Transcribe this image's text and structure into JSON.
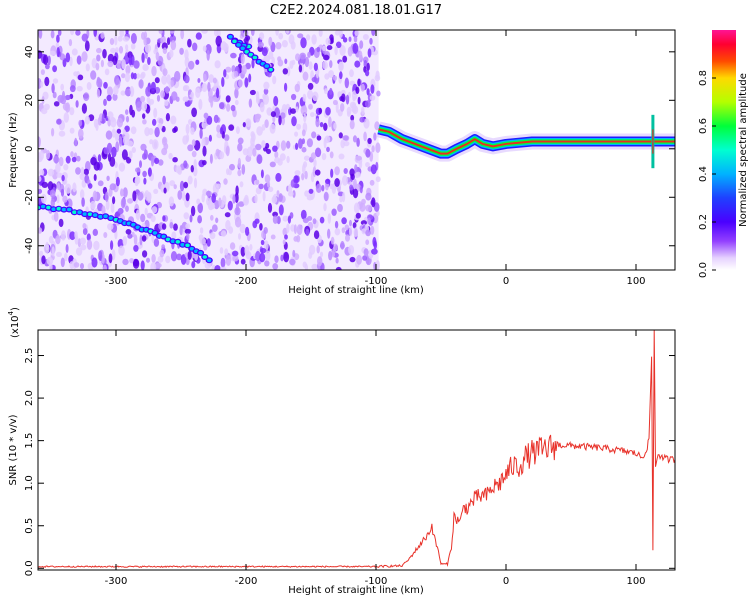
{
  "title": "C2E2.2024.081.18.01.G17",
  "chart_data": [
    {
      "type": "heatmap",
      "xlabel": "Height of straight line (km)",
      "ylabel": "Frequency (Hz)",
      "xlim": [
        -360,
        130
      ],
      "ylim": [
        -50,
        49
      ],
      "xticks": [
        "-300",
        "-200",
        "-100",
        "0",
        "100"
      ],
      "yticks": [
        "-40",
        "-20",
        "0",
        "20",
        "40"
      ],
      "colorbar": {
        "label": "Normalized spectral amplitude",
        "range": [
          0,
          1
        ],
        "ticks": [
          "0.0",
          "0.2",
          "0.4",
          "0.6",
          "0.8"
        ],
        "colors": [
          "#ffffff",
          "#e6d2ff",
          "#c38cff",
          "#9340ff",
          "#6a00f0",
          "#1f1bff",
          "#00b2ff",
          "#00ffd0",
          "#00ff3a",
          "#b4ff00",
          "#ffd900",
          "#ff4a00",
          "#ff0030",
          "#ff1493"
        ]
      },
      "noise_region": {
        "x_range": [
          -360,
          -98
        ],
        "y_range": [
          -50,
          49
        ]
      },
      "traces": [
        {
          "name": "",
          "points": [
            [
              -360,
              -24
            ],
            [
              -340,
              -25
            ],
            [
              -320,
              -27
            ],
            [
              -300,
              -29
            ],
            [
              -280,
              -33
            ],
            [
              -260,
              -37
            ],
            [
              -245,
              -40
            ],
            [
              -235,
              -43
            ],
            [
              -225,
              -47
            ]
          ]
        },
        {
          "name": "",
          "points": [
            [
              -198,
              42
            ],
            [
              -205,
              44
            ],
            [
              -212,
              46
            ],
            [
              -190,
              36
            ],
            [
              -178,
              32
            ]
          ]
        },
        {
          "name": "",
          "points": [
            [
              -98,
              8
            ],
            [
              -90,
              7
            ],
            [
              -80,
              4
            ],
            [
              -70,
              2
            ],
            [
              -60,
              0
            ],
            [
              -50,
              -2
            ],
            [
              -45,
              -2
            ],
            [
              -38,
              0
            ],
            [
              -30,
              2
            ],
            [
              -24,
              4
            ],
            [
              -18,
              2
            ],
            [
              -10,
              1
            ],
            [
              0,
              2
            ],
            [
              20,
              3
            ],
            [
              40,
              3
            ],
            [
              60,
              3
            ],
            [
              80,
              3
            ],
            [
              100,
              3
            ],
            [
              110,
              3
            ],
            [
              115,
              3
            ],
            [
              130,
              3
            ]
          ]
        }
      ]
    },
    {
      "type": "line",
      "xlabel": "Height of straight line (km)",
      "ylabel": "SNR (10 * v/v)",
      "y_multiplier": "(x10",
      "y_multiplier_exp": "4",
      "y_multiplier_close": ")",
      "xlim": [
        -360,
        130
      ],
      "ylim": [
        -0.02,
        2.8
      ],
      "xticks": [
        "-300",
        "-200",
        "-100",
        "0",
        "100"
      ],
      "yticks": [
        "0.0",
        "0.5",
        "1.0",
        "1.5",
        "2.0",
        "2.5"
      ],
      "color": "#e8322a",
      "series": [
        {
          "name": "",
          "x": [
            -360,
            -200,
            -100,
            -80,
            -75,
            -70,
            -65,
            -60,
            -57,
            -55,
            -52,
            -50,
            -45,
            -42,
            -40,
            -35,
            -32,
            -30,
            -25,
            -20,
            -15,
            -10,
            -5,
            0,
            5,
            10,
            15,
            20,
            30,
            40,
            50,
            60,
            70,
            80,
            90,
            100,
            105,
            108,
            110,
            112,
            113,
            114,
            115,
            117,
            120,
            125,
            130
          ],
          "y": [
            0.02,
            0.02,
            0.02,
            0.03,
            0.1,
            0.2,
            0.3,
            0.4,
            0.5,
            0.35,
            0.2,
            0.05,
            0.05,
            0.25,
            0.6,
            0.55,
            0.75,
            0.7,
            0.8,
            0.85,
            0.85,
            0.95,
            1.0,
            1.1,
            1.2,
            1.2,
            1.3,
            1.35,
            1.4,
            1.45,
            1.44,
            1.43,
            1.42,
            1.4,
            1.38,
            1.35,
            1.3,
            1.4,
            1.5,
            2.5,
            0.2,
            2.8,
            1.2,
            1.35,
            1.3,
            1.28,
            1.28
          ]
        }
      ]
    }
  ]
}
